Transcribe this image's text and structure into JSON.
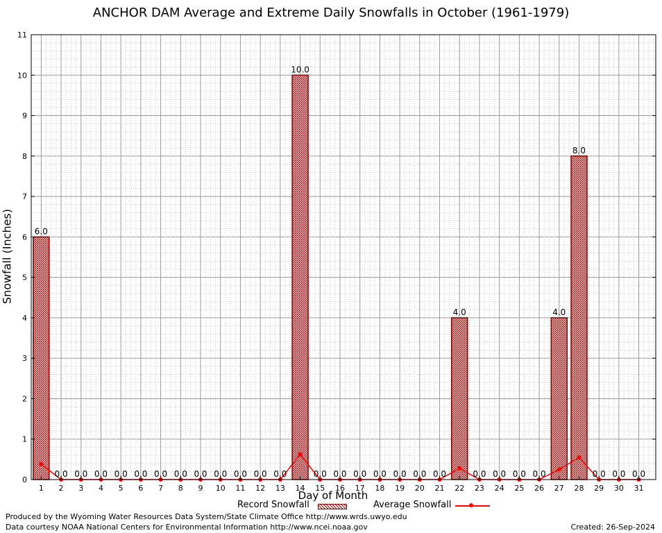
{
  "footer": {
    "line1": "Produced by the Wyoming Water Resources Data System/State Climate Office http://www.wrds.uwyo.edu",
    "line2": "Data courtesy NOAA National Centers for Environmental Information http://www.ncei.noaa.gov",
    "created": "Created:  26-Sep-2024"
  },
  "chart_data": {
    "type": "bar",
    "title": "ANCHOR DAM Average and Extreme Daily Snowfalls in October (1961-1979)",
    "xlabel": "Day of Month",
    "ylabel": "Snowfall (Inches)",
    "ylim": [
      0,
      11
    ],
    "yticks": [
      0,
      1,
      2,
      3,
      4,
      5,
      6,
      7,
      8,
      9,
      10,
      11
    ],
    "grid": true,
    "legend_placement": "bottom",
    "categories": [
      "1",
      "2",
      "3",
      "4",
      "5",
      "6",
      "7",
      "8",
      "9",
      "10",
      "11",
      "12",
      "13",
      "14",
      "15",
      "16",
      "17",
      "18",
      "19",
      "20",
      "21",
      "22",
      "23",
      "24",
      "25",
      "26",
      "27",
      "28",
      "29",
      "30",
      "31"
    ],
    "series": [
      {
        "name": "Record Snowfall",
        "kind": "bar",
        "color": "#8b0000",
        "values": [
          6.0,
          0,
          0,
          0,
          0,
          0,
          0,
          0,
          0,
          0,
          0,
          0,
          0,
          10.0,
          0,
          0,
          0,
          0,
          0,
          0,
          0,
          4.0,
          0,
          0,
          0,
          0,
          4.0,
          8.0,
          0,
          0,
          0
        ],
        "labels": [
          "6.0",
          "0.0",
          "0.0",
          "0.0",
          "0.0",
          "0.0",
          "0.0",
          "0.0",
          "0.0",
          "0.0",
          "0.0",
          "0.0",
          "0.0",
          "10.0",
          "0.0",
          "0.0",
          "0.0",
          "0.0",
          "0.0",
          "0.0",
          "0.0",
          "4.0",
          "0.0",
          "0.0",
          "0.0",
          "0.0",
          "4.0",
          "8.0",
          "0.0",
          "0.0",
          "0.0"
        ]
      },
      {
        "name": "Average Snowfall",
        "kind": "line",
        "color": "#ff0000",
        "values": [
          0.38,
          0,
          0,
          0,
          0,
          0,
          0,
          0,
          0,
          0,
          0,
          0,
          0,
          0.62,
          0,
          0,
          0,
          0,
          0,
          0,
          0,
          0.28,
          0,
          0,
          0,
          0,
          0.25,
          0.55,
          0,
          0,
          0
        ]
      }
    ]
  }
}
